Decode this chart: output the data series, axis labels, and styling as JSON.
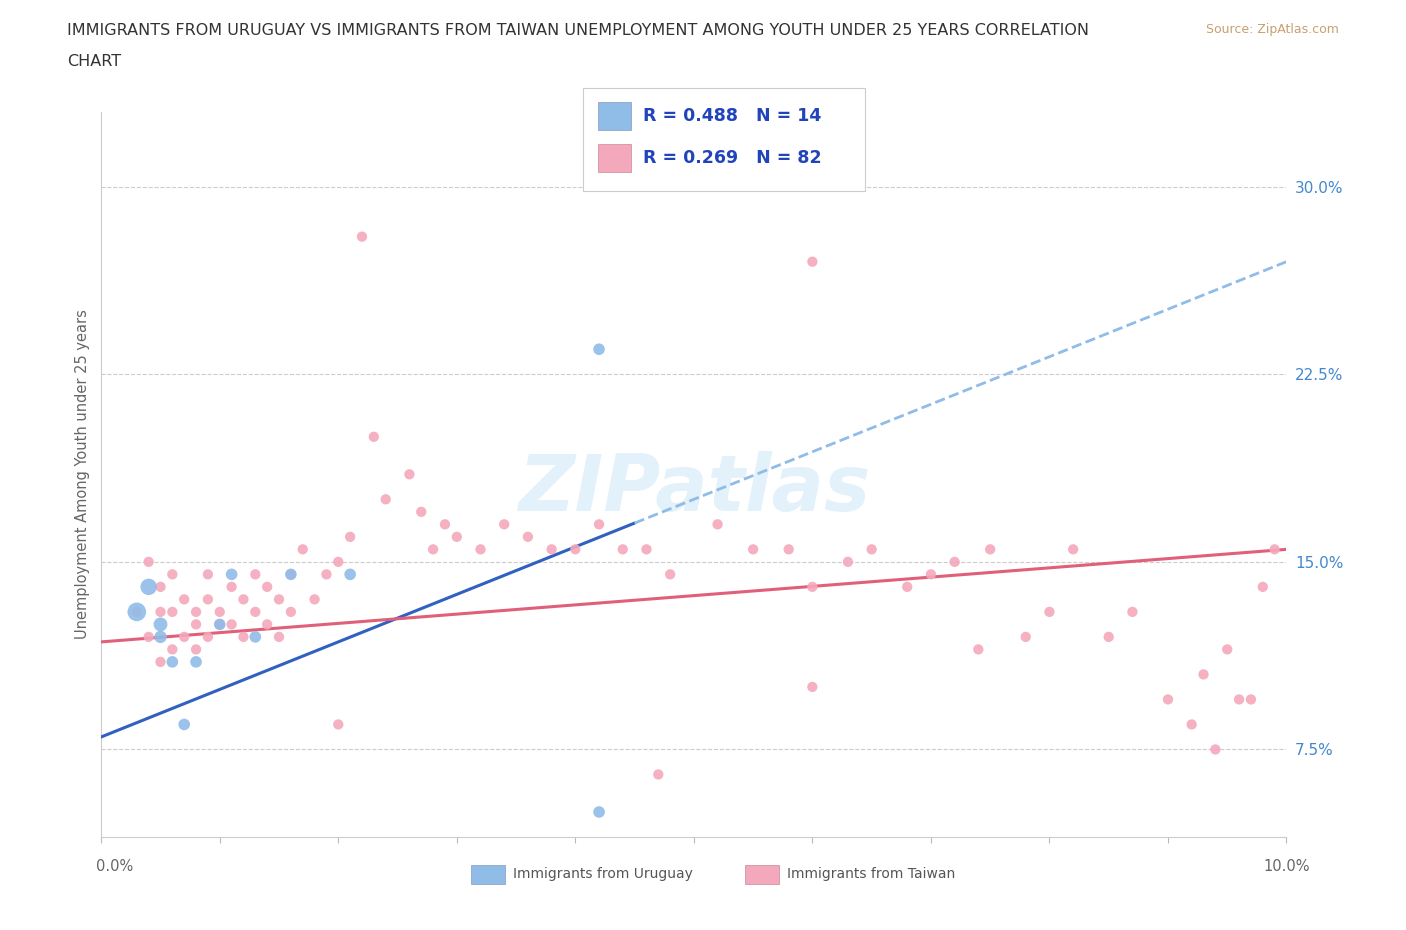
{
  "title_line1": "IMMIGRANTS FROM URUGUAY VS IMMIGRANTS FROM TAIWAN UNEMPLOYMENT AMONG YOUTH UNDER 25 YEARS CORRELATION",
  "title_line2": "CHART",
  "source_text": "Source: ZipAtlas.com",
  "ylabel": "Unemployment Among Youth under 25 years",
  "right_yticks": [
    "30.0%",
    "22.5%",
    "15.0%",
    "7.5%"
  ],
  "right_ytick_vals": [
    0.3,
    0.225,
    0.15,
    0.075
  ],
  "xlim": [
    0.0,
    0.1
  ],
  "ylim": [
    0.04,
    0.33
  ],
  "watermark": "ZIPatlas",
  "legend_label_uruguay": "Immigrants from Uruguay",
  "legend_label_taiwan": "Immigrants from Taiwan",
  "color_uruguay": "#90bce8",
  "color_taiwan": "#f4a8bc",
  "color_line_uruguay": "#3060c0",
  "color_line_uruguay_dash": "#90bce8",
  "color_line_taiwan": "#e0607a",
  "background": "#ffffff",
  "grid_color": "#cccccc",
  "legend_text_color": "#2244bb",
  "title_color": "#333333",
  "source_color": "#c8a070",
  "tick_label_color": "#4488cc",
  "axis_label_color": "#666666",
  "bottom_label_color": "#666666",
  "uruguay_x": [
    0.003,
    0.004,
    0.005,
    0.005,
    0.006,
    0.007,
    0.008,
    0.01,
    0.011,
    0.013,
    0.016,
    0.021,
    0.042,
    0.042
  ],
  "uruguay_y": [
    0.13,
    0.14,
    0.125,
    0.12,
    0.11,
    0.085,
    0.11,
    0.125,
    0.145,
    0.12,
    0.145,
    0.145,
    0.235,
    0.05
  ],
  "uruguay_sizes": [
    180,
    140,
    100,
    80,
    70,
    70,
    70,
    70,
    70,
    70,
    70,
    70,
    70,
    70
  ],
  "taiwan_x": [
    0.003,
    0.004,
    0.004,
    0.005,
    0.005,
    0.005,
    0.006,
    0.006,
    0.006,
    0.007,
    0.007,
    0.008,
    0.008,
    0.008,
    0.009,
    0.009,
    0.009,
    0.01,
    0.01,
    0.011,
    0.011,
    0.012,
    0.012,
    0.013,
    0.013,
    0.014,
    0.014,
    0.015,
    0.015,
    0.016,
    0.016,
    0.017,
    0.018,
    0.019,
    0.02,
    0.021,
    0.022,
    0.023,
    0.024,
    0.026,
    0.027,
    0.028,
    0.029,
    0.03,
    0.032,
    0.034,
    0.036,
    0.038,
    0.04,
    0.042,
    0.044,
    0.046,
    0.048,
    0.052,
    0.055,
    0.058,
    0.06,
    0.063,
    0.065,
    0.068,
    0.07,
    0.072,
    0.075,
    0.078,
    0.08,
    0.082,
    0.085,
    0.087,
    0.09,
    0.092,
    0.093,
    0.094,
    0.095,
    0.096,
    0.097,
    0.098,
    0.099,
    0.06,
    0.02,
    0.047,
    0.06,
    0.074
  ],
  "taiwan_y": [
    0.13,
    0.15,
    0.12,
    0.14,
    0.13,
    0.11,
    0.115,
    0.13,
    0.145,
    0.12,
    0.135,
    0.13,
    0.115,
    0.125,
    0.12,
    0.135,
    0.145,
    0.13,
    0.125,
    0.14,
    0.125,
    0.135,
    0.12,
    0.13,
    0.145,
    0.125,
    0.14,
    0.135,
    0.12,
    0.13,
    0.145,
    0.155,
    0.135,
    0.145,
    0.15,
    0.16,
    0.28,
    0.2,
    0.175,
    0.185,
    0.17,
    0.155,
    0.165,
    0.16,
    0.155,
    0.165,
    0.16,
    0.155,
    0.155,
    0.165,
    0.155,
    0.155,
    0.145,
    0.165,
    0.155,
    0.155,
    0.14,
    0.15,
    0.155,
    0.14,
    0.145,
    0.15,
    0.155,
    0.12,
    0.13,
    0.155,
    0.12,
    0.13,
    0.095,
    0.085,
    0.105,
    0.075,
    0.115,
    0.095,
    0.095,
    0.14,
    0.155,
    0.27,
    0.085,
    0.065,
    0.1,
    0.115
  ],
  "line_solid_end_x": 0.045,
  "taiwan_line_y_at_0": 0.118,
  "taiwan_line_y_at_010": 0.155,
  "uru_line_y_at_0": 0.08,
  "uru_line_y_at_010": 0.27
}
